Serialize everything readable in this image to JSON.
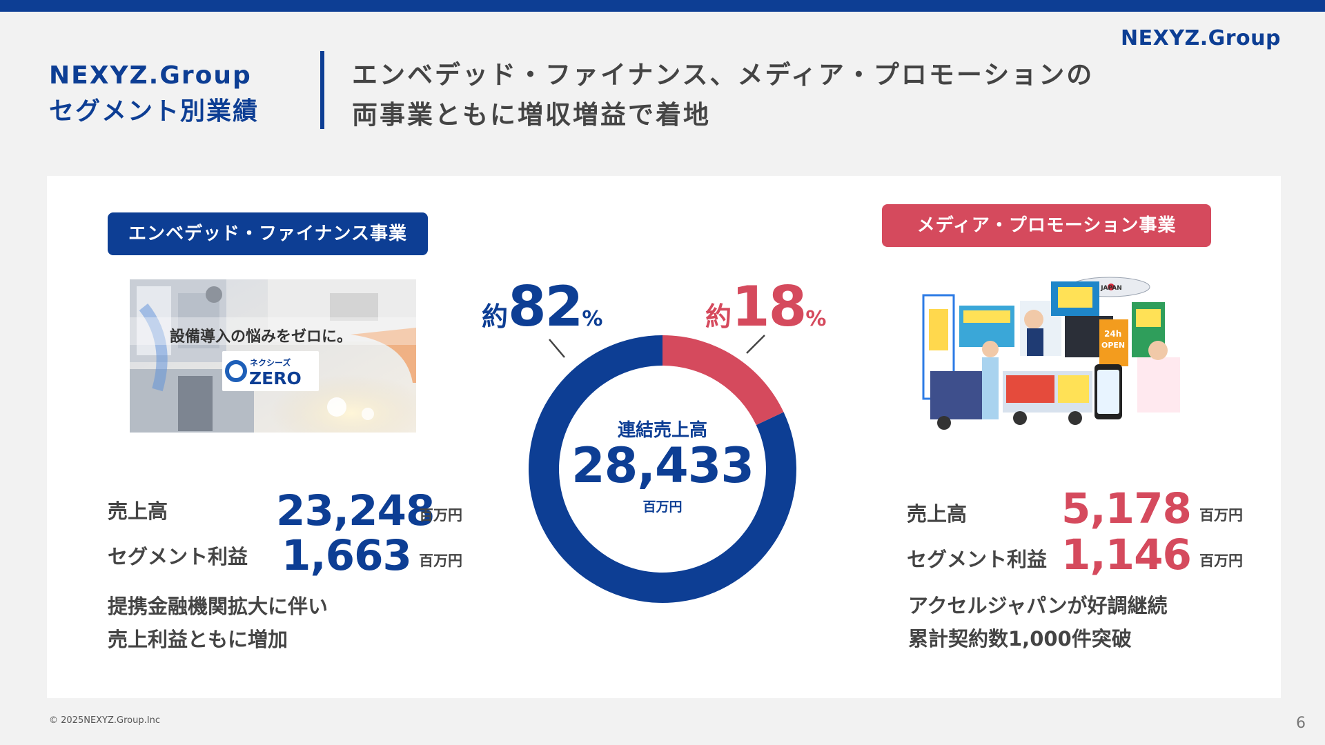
{
  "header": {
    "brand_logo": "NEXYZ.Group",
    "section_title_line1": "NEXYZ.Group",
    "section_title_line2": "セグメント別業績",
    "headline_line1": "エンベデッド・ファイナンス、メディア・プロモーションの",
    "headline_line2": "両事業ともに増収増益で着地"
  },
  "colors": {
    "navy": "#0d3e94",
    "red": "#d54a5d",
    "background": "#f2f2f2"
  },
  "left_segment": {
    "title": "エンベデッド・ファイナンス事業",
    "photo_caption": "設備導入の悩みをゼロに。",
    "photo_logo_line1": "ネクシーズ",
    "photo_logo_line2": "ZERO",
    "sales_label": "売上高",
    "sales_value": "23,248",
    "sales_unit": "百万円",
    "profit_label": "セグメント利益",
    "profit_value": "1,663",
    "profit_unit": "百万円",
    "note_line1": "提携金融機関拡大に伴い",
    "note_line2": "売上利益ともに増加"
  },
  "right_segment": {
    "title": "メディア・プロモーション事業",
    "photo_blimp": "ACCEL JAPAN",
    "photo_sign_24h": "24h",
    "photo_sign_open": "OPEN",
    "sales_label": "売上高",
    "sales_value": "5,178",
    "sales_unit": "百万円",
    "profit_label": "セグメント利益",
    "profit_value": "1,146",
    "profit_unit": "百万円",
    "note_line1": "アクセルジャパンが好調継続",
    "note_line2": "累計契約数1,000件突破"
  },
  "chart_data": {
    "type": "pie",
    "donut": true,
    "center_label": "連結売上高",
    "center_value": "28,433",
    "center_unit": "百万円",
    "slices": [
      {
        "name": "エンベデッド・ファイナンス事業",
        "value": 82,
        "prefix": "約",
        "number": "82",
        "suffix": "%",
        "color": "#0d3e94"
      },
      {
        "name": "メディア・プロモーション事業",
        "value": 18,
        "prefix": "約",
        "number": "18",
        "suffix": "%",
        "color": "#d54a5d"
      }
    ]
  },
  "footer": {
    "copyright": "© 2025NEXYZ.Group.Inc",
    "page_number": "6"
  }
}
